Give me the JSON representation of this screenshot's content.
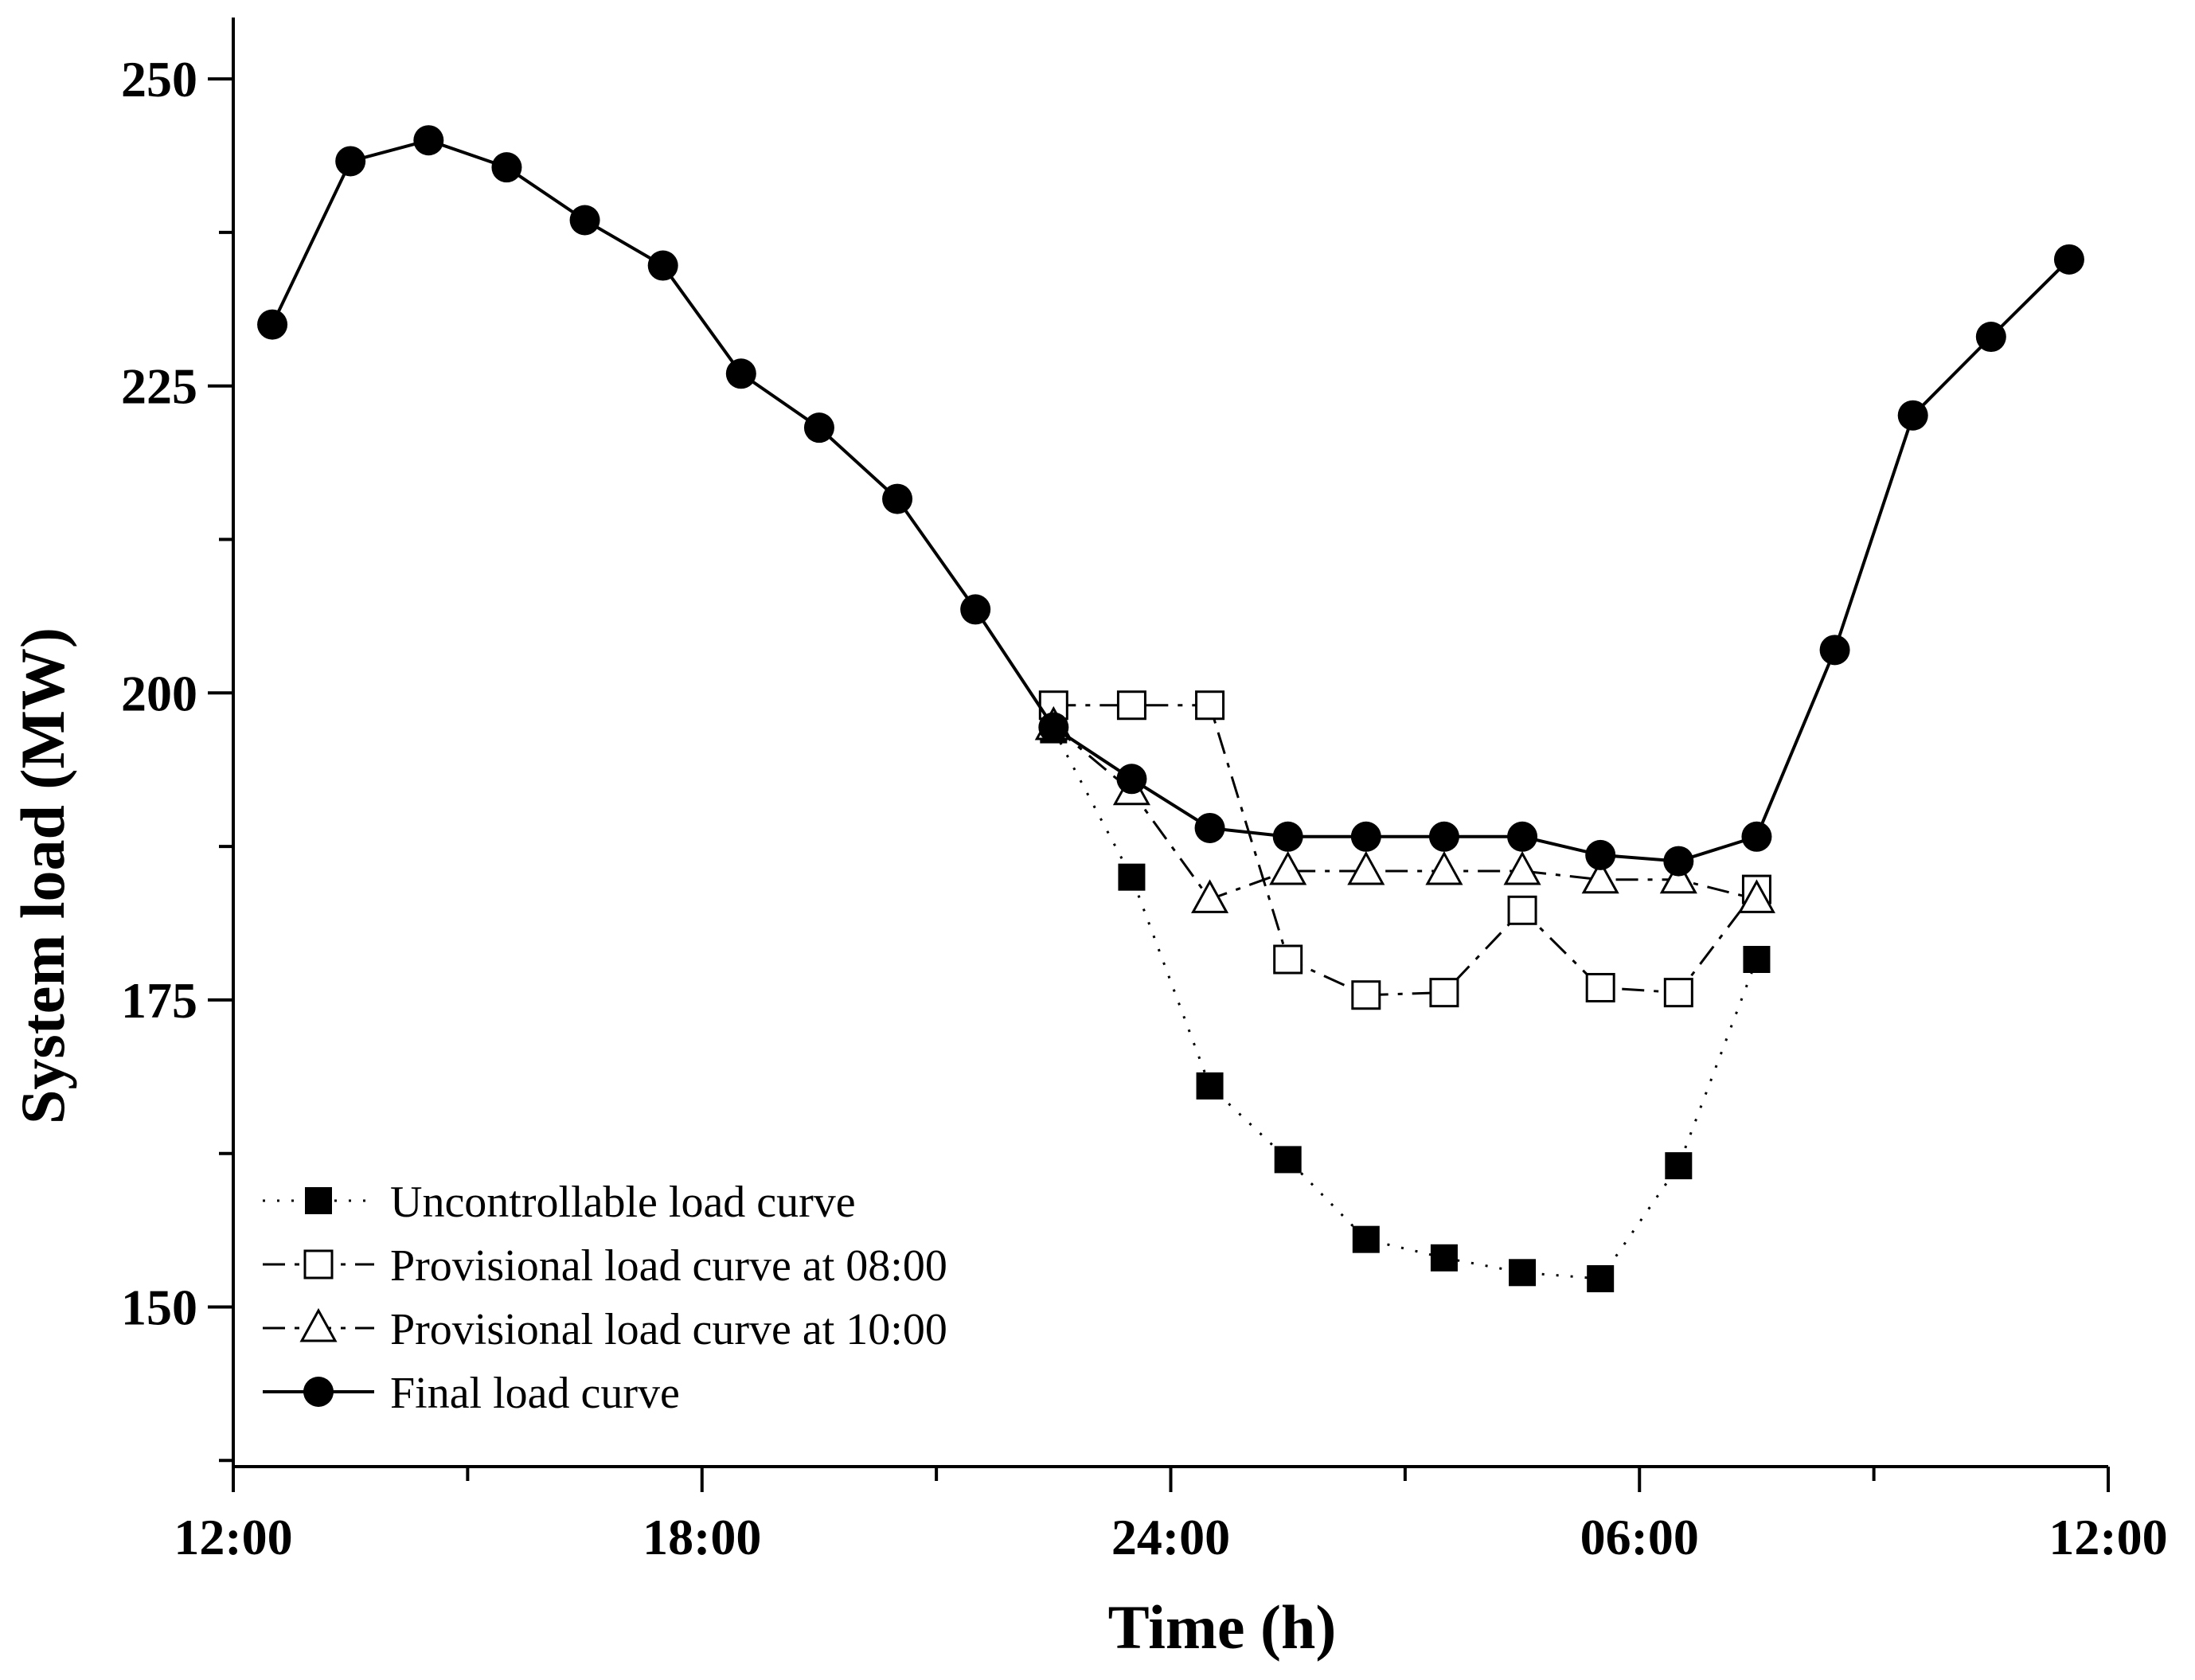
{
  "chart_data": {
    "type": "line",
    "title": "",
    "xlabel": "Time (h)",
    "ylabel": "System load (MW)",
    "xlim": [
      12,
      36
    ],
    "ylim": [
      137,
      255
    ],
    "x_ticks": [
      {
        "value": 12,
        "label": "12:00"
      },
      {
        "value": 18,
        "label": "18:00"
      },
      {
        "value": 24,
        "label": "24:00"
      },
      {
        "value": 30,
        "label": "06:00"
      },
      {
        "value": 36,
        "label": "12:00"
      }
    ],
    "x_minor_ticks": [
      15,
      21,
      27,
      33
    ],
    "y_ticks": [
      150,
      175,
      200,
      225,
      250
    ],
    "y_minor_ticks": [
      137.5,
      162.5,
      187.5,
      212.5,
      237.5
    ],
    "legend_position": "bottom-left",
    "series": [
      {
        "name": "Uncontrollable load curve",
        "style": "dotted",
        "marker": "filled-square",
        "x": [
          22.5,
          23.5,
          24.5,
          25.5,
          26.5,
          27.5,
          28.5,
          29.5,
          30.5,
          31.5
        ],
        "y": [
          197,
          185,
          168,
          162,
          155.5,
          154,
          152.8,
          152.3,
          161.5,
          178.3
        ]
      },
      {
        "name": "Provisional load curve at 08:00",
        "style": "dash-dot",
        "marker": "open-square",
        "x": [
          22.5,
          23.5,
          24.5,
          25.5,
          26.5,
          27.5,
          28.5,
          29.5,
          30.5,
          31.5
        ],
        "y": [
          199,
          199,
          199,
          178.3,
          175.4,
          175.6,
          182.3,
          176,
          175.6,
          184
        ]
      },
      {
        "name": "Provisional load curve at 10:00",
        "style": "dash-dot",
        "marker": "open-triangle",
        "x": [
          22.5,
          23.5,
          24.5,
          25.5,
          26.5,
          27.5,
          28.5,
          29.5,
          30.5,
          31.5
        ],
        "y": [
          197.3,
          192,
          183.2,
          185.5,
          185.5,
          185.5,
          185.5,
          184.8,
          184.8,
          183.2
        ]
      },
      {
        "name": "Final load curve",
        "style": "solid",
        "marker": "filled-circle",
        "x": [
          12.5,
          13.5,
          14.5,
          15.5,
          16.5,
          17.5,
          18.5,
          19.5,
          20.5,
          21.5,
          22.5,
          23.5,
          24.5,
          25.5,
          26.5,
          27.5,
          28.5,
          29.5,
          30.5,
          31.5,
          32.5,
          33.5,
          34.5,
          35.5
        ],
        "y": [
          230,
          243.3,
          245,
          242.8,
          238.5,
          234.8,
          226,
          221.6,
          215.8,
          206.8,
          197.2,
          193,
          189,
          188.3,
          188.3,
          188.3,
          188.3,
          186.8,
          186.3,
          188.3,
          203.5,
          222.6,
          229,
          235.3
        ]
      }
    ]
  }
}
